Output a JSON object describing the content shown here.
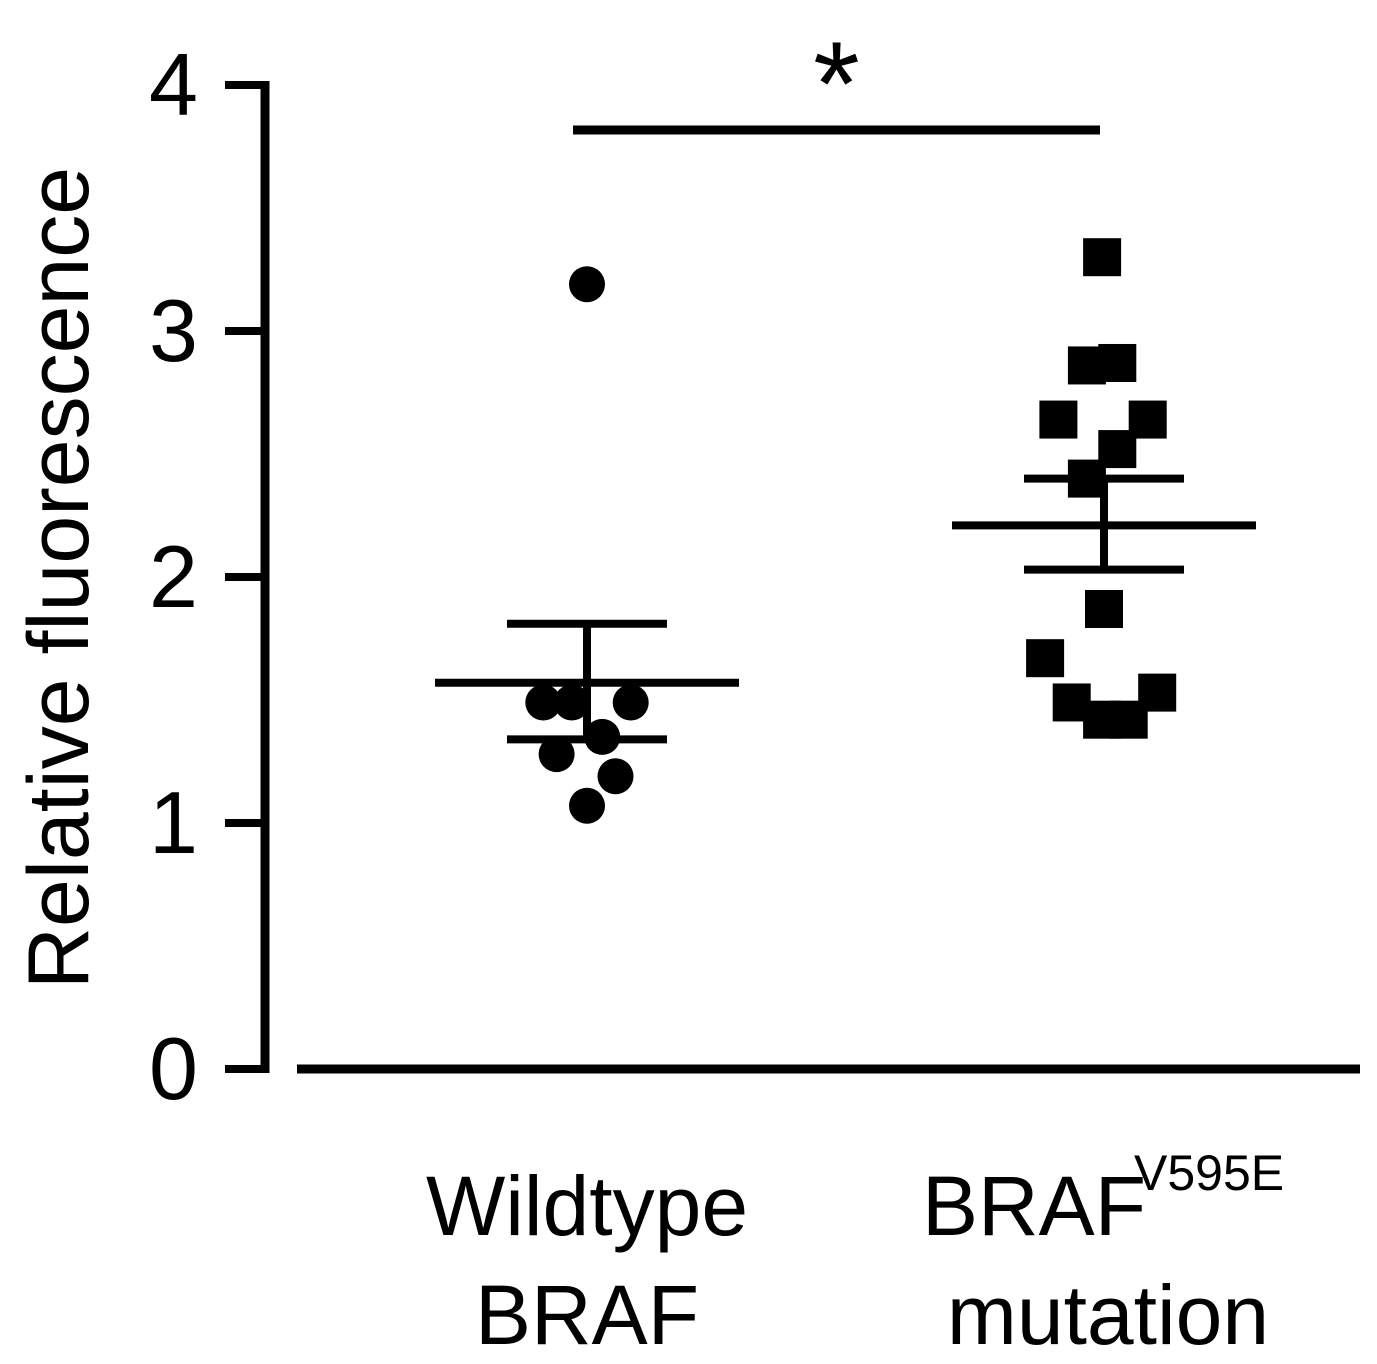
{
  "chart_data": {
    "type": "scatter",
    "ylabel": "Relative fluorescence",
    "ylim": [
      0,
      4
    ],
    "yticks": [
      "0",
      "1",
      "2",
      "3",
      "4"
    ],
    "grid": false,
    "categories": [
      {
        "line1": "Wildtype",
        "line2": "BRAF",
        "superscript": ""
      },
      {
        "line1": "BRAF",
        "line2": "mutation",
        "superscript": "V595E"
      }
    ],
    "series": [
      {
        "marker": "circle",
        "points": [
          {
            "dx": 0.0,
            "y": 3.19
          },
          {
            "dx": -0.23,
            "y": 1.49
          },
          {
            "dx": -0.08,
            "y": 1.49
          },
          {
            "dx": 0.23,
            "y": 1.49
          },
          {
            "dx": 0.08,
            "y": 1.35
          },
          {
            "dx": -0.16,
            "y": 1.28
          },
          {
            "dx": 0.15,
            "y": 1.19
          },
          {
            "dx": 0.0,
            "y": 1.07
          }
        ],
        "mean": 1.57,
        "sem_upper": 1.81,
        "sem_lower": 1.34
      },
      {
        "marker": "square",
        "points": [
          {
            "dx": -0.01,
            "y": 3.3
          },
          {
            "dx": -0.09,
            "y": 2.86
          },
          {
            "dx": 0.07,
            "y": 2.87
          },
          {
            "dx": -0.24,
            "y": 2.64
          },
          {
            "dx": 0.23,
            "y": 2.64
          },
          {
            "dx": 0.07,
            "y": 2.52
          },
          {
            "dx": -0.09,
            "y": 2.4
          },
          {
            "dx": 0.0,
            "y": 1.87
          },
          {
            "dx": -0.31,
            "y": 1.67
          },
          {
            "dx": -0.17,
            "y": 1.49
          },
          {
            "dx": 0.28,
            "y": 1.53
          },
          {
            "dx": -0.01,
            "y": 1.42
          },
          {
            "dx": 0.13,
            "y": 1.42
          }
        ],
        "mean": 2.21,
        "sem_upper": 2.4,
        "sem_lower": 2.03
      }
    ],
    "significance": {
      "label": "*",
      "from": 0,
      "to": 1
    }
  }
}
